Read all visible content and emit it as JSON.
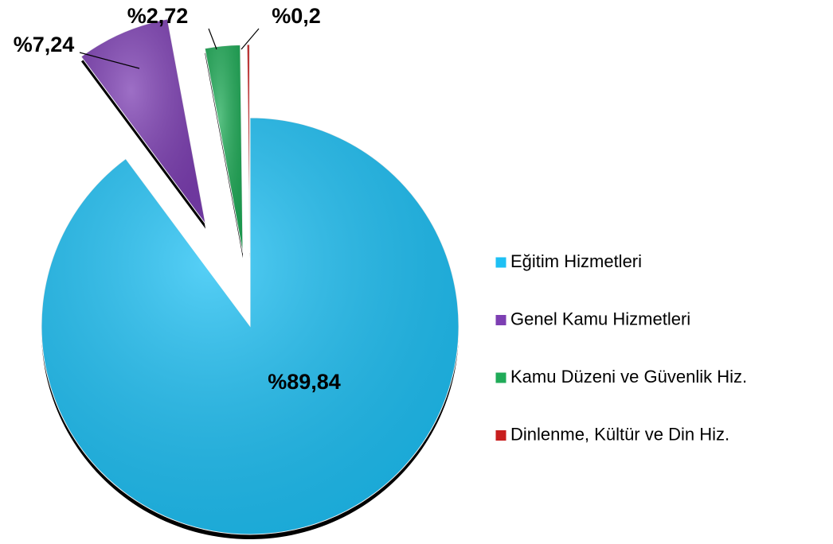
{
  "chart_data": {
    "type": "pie",
    "categories": [
      "Eğitim Hizmetleri",
      "Genel Kamu Hizmetleri",
      "Kamu Düzeni ve Güvenlik Hiz.",
      "Dinlenme, Kültür ve Din Hiz."
    ],
    "values": [
      89.84,
      7.24,
      2.72,
      0.2
    ],
    "value_labels": [
      "%89,84",
      "%7,24",
      "%2,72",
      "%0,2"
    ],
    "colors": [
      "#1ec0f4",
      "#7d3fb3",
      "#20ab58",
      "#c81e1e"
    ],
    "legend": "right"
  }
}
